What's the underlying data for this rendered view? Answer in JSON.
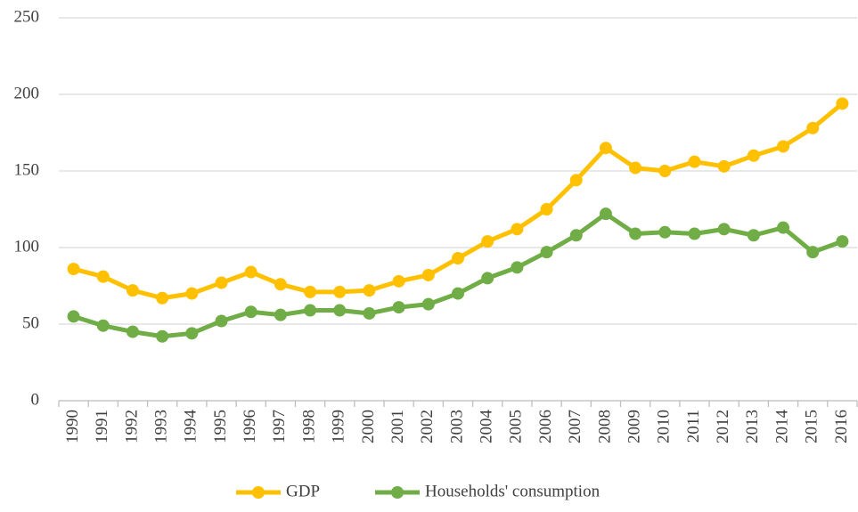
{
  "chart_data": {
    "type": "line",
    "categories": [
      "1990",
      "1991",
      "1992",
      "1993",
      "1994",
      "1995",
      "1996",
      "1997",
      "1998",
      "1999",
      "2000",
      "2001",
      "2002",
      "2003",
      "2004",
      "2005",
      "2006",
      "2007",
      "2008",
      "2009",
      "2010",
      "2011",
      "2012",
      "2013",
      "2014",
      "2015",
      "2016"
    ],
    "series": [
      {
        "name": "GDP",
        "color": "#ffc000",
        "values": [
          86,
          81,
          72,
          67,
          70,
          77,
          84,
          76,
          71,
          71,
          72,
          78,
          82,
          93,
          104,
          112,
          125,
          144,
          165,
          152,
          150,
          156,
          153,
          160,
          166,
          178,
          194
        ]
      },
      {
        "name": "Households' consumption",
        "color": "#70ad47",
        "values": [
          55,
          49,
          45,
          42,
          44,
          52,
          58,
          56,
          59,
          59,
          57,
          61,
          63,
          70,
          80,
          87,
          97,
          108,
          122,
          109,
          110,
          109,
          112,
          108,
          113,
          97,
          104
        ]
      }
    ],
    "ylim": [
      0,
      250
    ],
    "yticks": [
      0,
      50,
      100,
      150,
      200,
      250
    ],
    "grid": true,
    "legend": "bottom"
  }
}
